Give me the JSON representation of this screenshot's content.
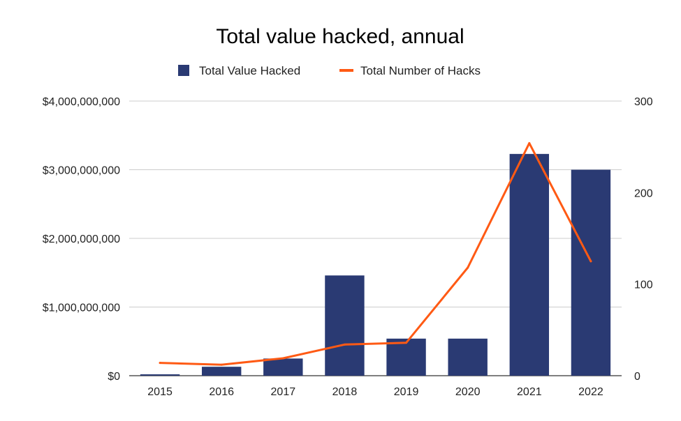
{
  "chart_data": {
    "type": "bar",
    "title": "Total value hacked, annual",
    "categories": [
      "2015",
      "2016",
      "2017",
      "2018",
      "2019",
      "2020",
      "2021",
      "2022"
    ],
    "series": [
      {
        "name": "Total Value Hacked",
        "kind": "bar",
        "axis": "left",
        "color": "#2a3a73",
        "values": [
          20000000,
          130000000,
          250000000,
          1460000000,
          540000000,
          540000000,
          3230000000,
          3000000000
        ]
      },
      {
        "name": "Total Number of Hacks",
        "kind": "line",
        "axis": "right",
        "color": "#ff5a14",
        "values": [
          14,
          12,
          19,
          34,
          36,
          118,
          254,
          125
        ]
      }
    ],
    "y_left": {
      "lim": [
        0,
        4000000000
      ],
      "ticks": [
        0,
        1000000000,
        2000000000,
        3000000000,
        4000000000
      ],
      "tick_labels": [
        "$0",
        "$1,000,000,000",
        "$2,000,000,000",
        "$3,000,000,000",
        "$4,000,000,000"
      ]
    },
    "y_right": {
      "lim": [
        0,
        300
      ],
      "ticks": [
        0,
        100,
        200,
        300
      ],
      "tick_labels": [
        "0",
        "100",
        "200",
        "300"
      ]
    },
    "grid": true,
    "legend": "top-center",
    "gridline_color": "#cccccc"
  }
}
